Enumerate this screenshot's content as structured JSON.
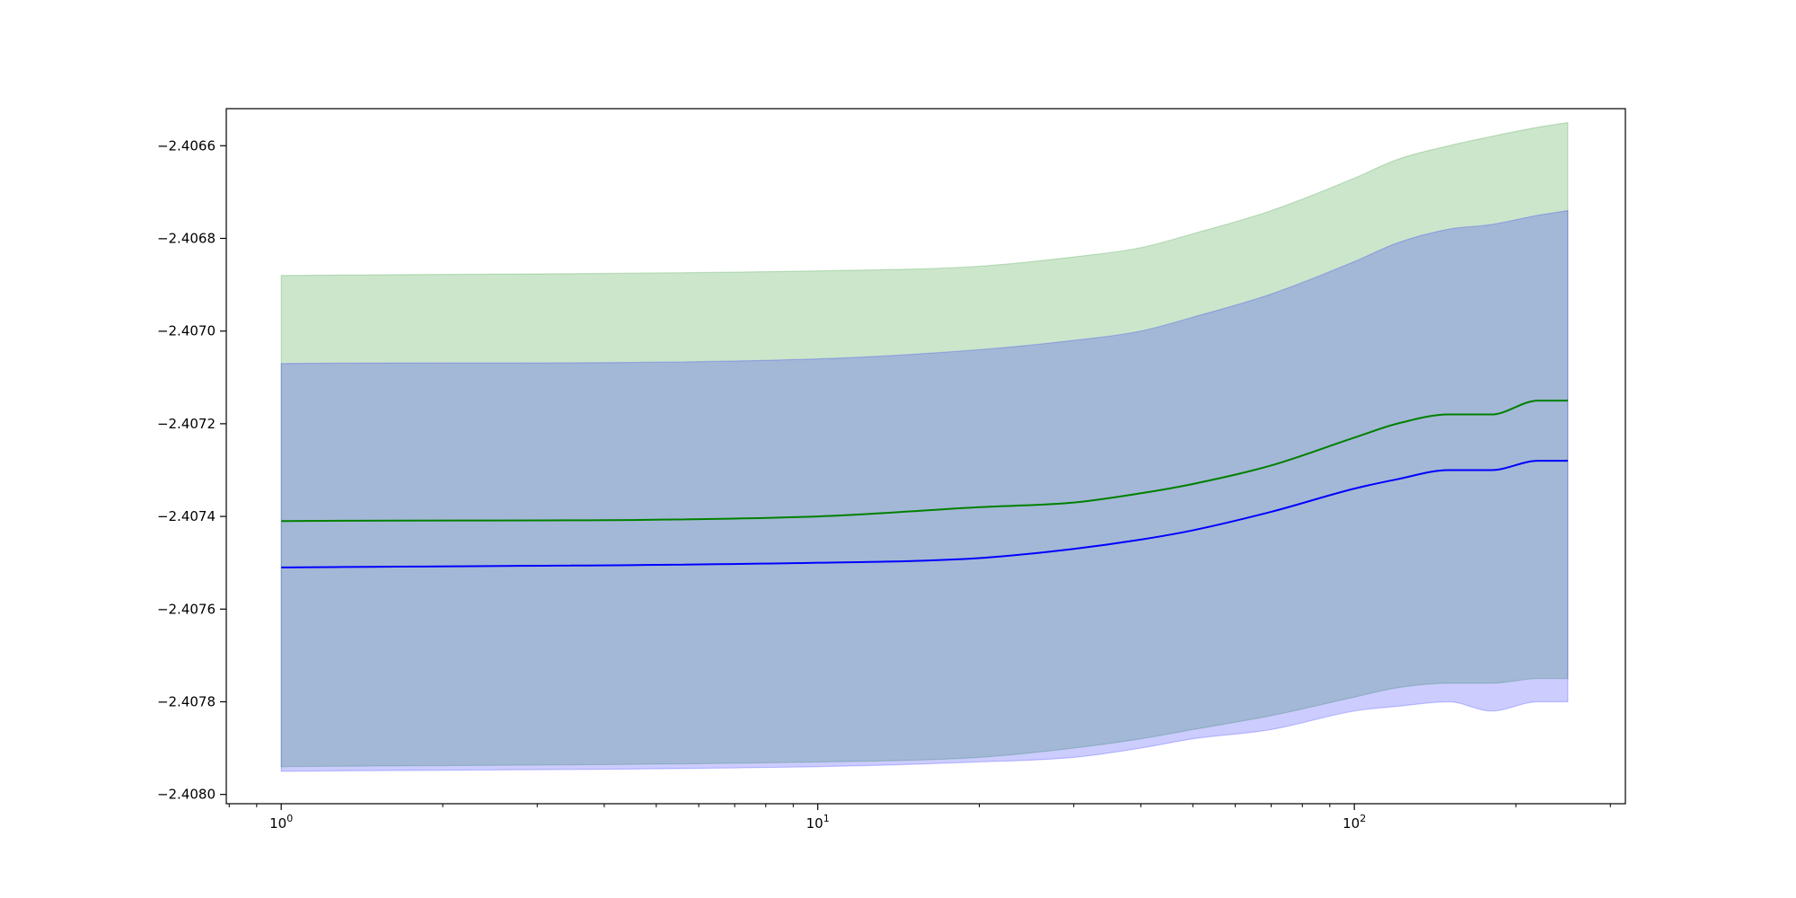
{
  "chart_data": {
    "type": "line",
    "title": "",
    "xlabel": "",
    "ylabel": "",
    "x_scale": "log",
    "xlim": [
      0.79,
      320
    ],
    "ylim": [
      -2.40802,
      -2.40652
    ],
    "grid": false,
    "legend": "none",
    "x_ticks": [
      {
        "value": 1,
        "base": "10",
        "exp": "0"
      },
      {
        "value": 10,
        "base": "10",
        "exp": "1"
      },
      {
        "value": 100,
        "base": "10",
        "exp": "2"
      }
    ],
    "x_minor_ticks": [
      0.8,
      0.9,
      2,
      3,
      4,
      5,
      6,
      7,
      8,
      9,
      20,
      30,
      40,
      50,
      60,
      70,
      80,
      90,
      200,
      300
    ],
    "y_ticks": [
      {
        "value": -2.4066,
        "label": "−2.4066"
      },
      {
        "value": -2.4068,
        "label": "−2.4068"
      },
      {
        "value": -2.407,
        "label": "−2.4070"
      },
      {
        "value": -2.4072,
        "label": "−2.4072"
      },
      {
        "value": -2.4074,
        "label": "−2.4074"
      },
      {
        "value": -2.4076,
        "label": "−2.4076"
      },
      {
        "value": -2.4078,
        "label": "−2.4078"
      },
      {
        "value": -2.408,
        "label": "−2.4080"
      }
    ],
    "x": [
      1,
      10,
      20,
      30,
      40,
      50,
      70,
      100,
      120,
      150,
      180,
      220,
      250
    ],
    "series": [
      {
        "color": "#008000",
        "band_color": "#008000",
        "band_opacity": 0.2,
        "y": [
          -2.40741,
          -2.4074,
          -2.40738,
          -2.40737,
          -2.40735,
          -2.40733,
          -2.40729,
          -2.40723,
          -2.4072,
          -2.40718,
          -2.40718,
          -2.40715,
          -2.40715
        ],
        "upper": [
          -2.40688,
          -2.40687,
          -2.40686,
          -2.40684,
          -2.40682,
          -2.40679,
          -2.40674,
          -2.40667,
          -2.40663,
          -2.4066,
          -2.40658,
          -2.40656,
          -2.40655
        ],
        "lower": [
          -2.40794,
          -2.40793,
          -2.40792,
          -2.4079,
          -2.40788,
          -2.40786,
          -2.40783,
          -2.40779,
          -2.40777,
          -2.40776,
          -2.40776,
          -2.40775,
          -2.40775
        ]
      },
      {
        "color": "#0000ff",
        "band_color": "#0000ff",
        "band_opacity": 0.2,
        "y": [
          -2.40751,
          -2.4075,
          -2.40749,
          -2.40747,
          -2.40745,
          -2.40743,
          -2.40739,
          -2.40734,
          -2.40732,
          -2.4073,
          -2.4073,
          -2.40728,
          -2.40728
        ],
        "upper": [
          -2.40707,
          -2.40706,
          -2.40704,
          -2.40702,
          -2.407,
          -2.40697,
          -2.40692,
          -2.40685,
          -2.40681,
          -2.40678,
          -2.40677,
          -2.40675,
          -2.40674
        ],
        "lower": [
          -2.40795,
          -2.40794,
          -2.40793,
          -2.40792,
          -2.4079,
          -2.40788,
          -2.40786,
          -2.40782,
          -2.40781,
          -2.4078,
          -2.40782,
          -2.4078,
          -2.4078
        ]
      }
    ]
  }
}
